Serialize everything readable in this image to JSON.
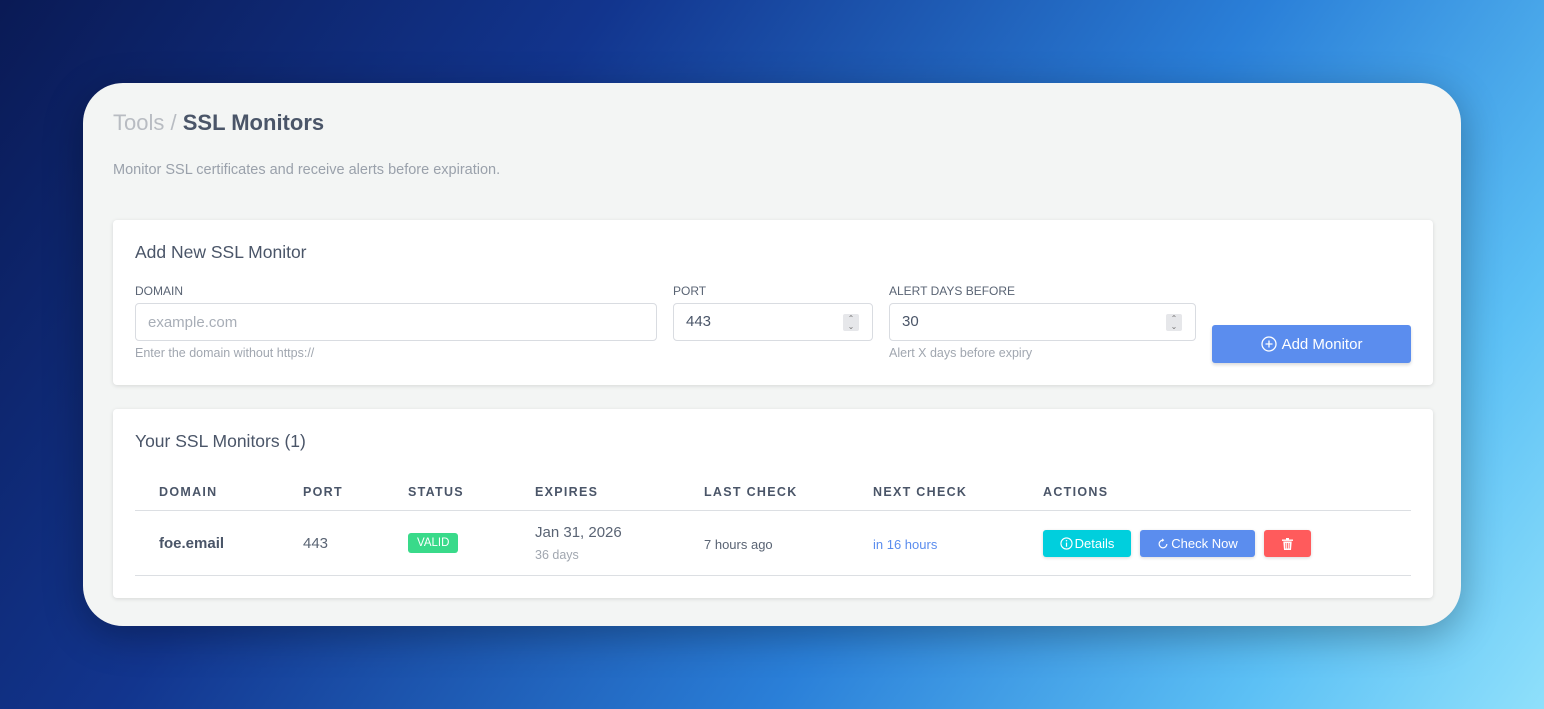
{
  "breadcrumb": {
    "parent": "Tools",
    "separator": "/",
    "current": "SSL Monitors"
  },
  "subtitle": "Monitor SSL certificates and receive alerts before expiration.",
  "add_form": {
    "title": "Add New SSL Monitor",
    "domain": {
      "label": "DOMAIN",
      "placeholder": "example.com",
      "value": "",
      "help": "Enter the domain without https://"
    },
    "port": {
      "label": "PORT",
      "value": "443"
    },
    "alert_days": {
      "label": "ALERT DAYS BEFORE",
      "value": "30",
      "help": "Alert X days before expiry"
    },
    "submit_label": "Add Monitor"
  },
  "monitors": {
    "title": "Your SSL Monitors (1)",
    "columns": [
      "DOMAIN",
      "PORT",
      "STATUS",
      "EXPIRES",
      "LAST CHECK",
      "NEXT CHECK",
      "ACTIONS"
    ],
    "rows": [
      {
        "domain": "foe.email",
        "port": "443",
        "status": "VALID",
        "expires": "Jan 31, 2026",
        "expires_in": "36 days",
        "last_check": "7 hours ago",
        "next_check": "in 16 hours",
        "actions": {
          "details": "Details",
          "check_now": "Check Now"
        }
      }
    ]
  },
  "colors": {
    "primary": "#5b8dee",
    "info": "#00cfdd",
    "danger": "#ff5b5c",
    "success": "#39da8a"
  }
}
